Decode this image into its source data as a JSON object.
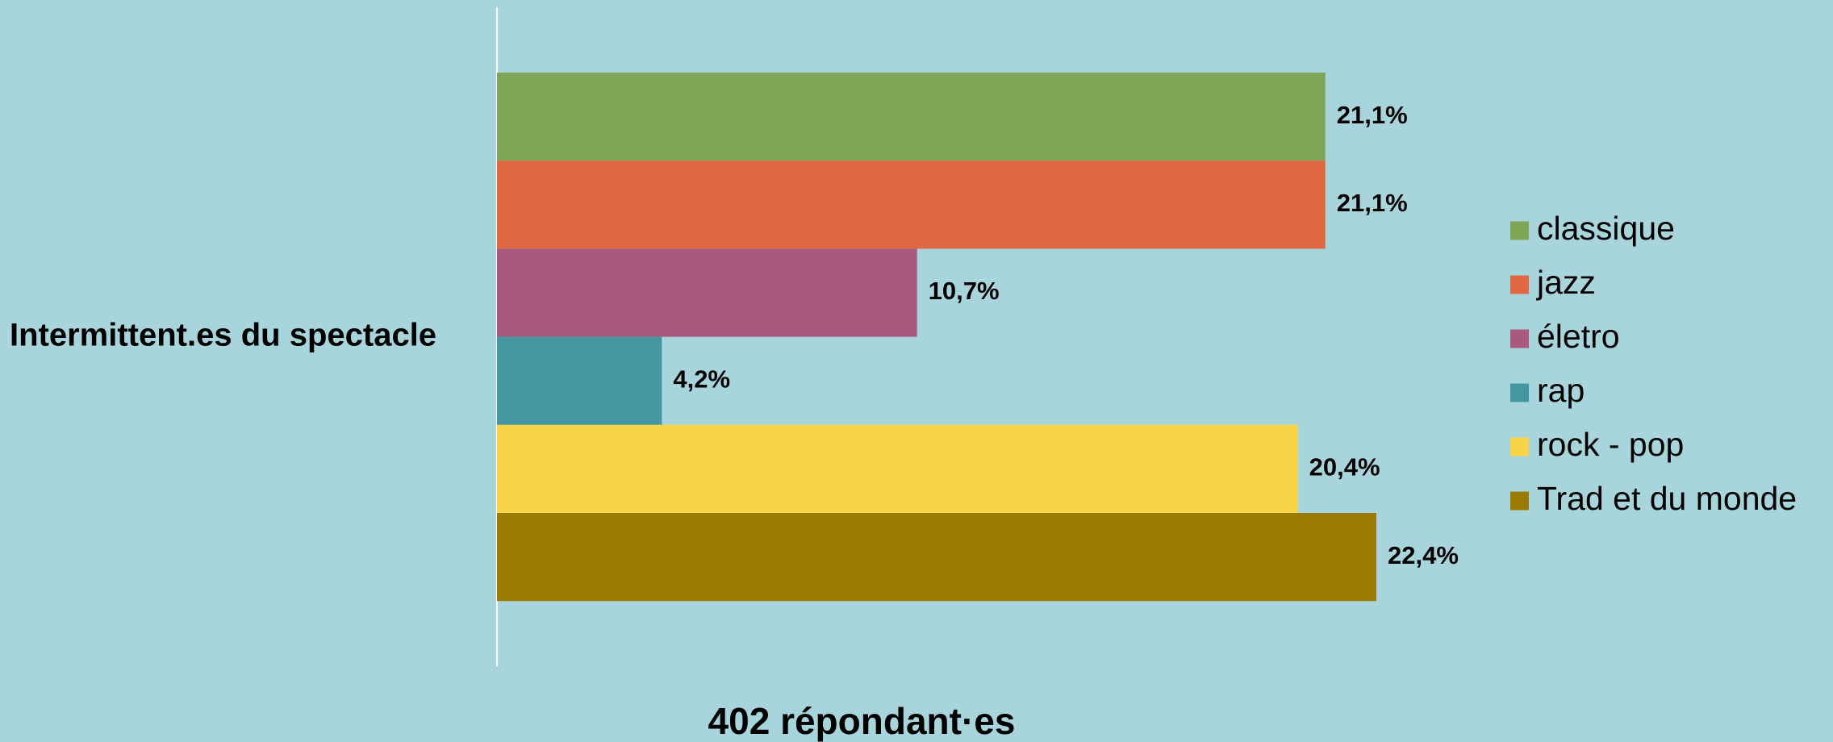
{
  "chart_data": {
    "type": "bar",
    "orientation": "horizontal",
    "categories": [
      "Intermittent.es du spectacle"
    ],
    "x_label": "402 répondant·es",
    "series": [
      {
        "name": "classique",
        "color": "#7ea657",
        "values": [
          21.1
        ],
        "value_labels": [
          "21,1%"
        ]
      },
      {
        "name": "jazz",
        "color": "#e06842",
        "values": [
          21.1
        ],
        "value_labels": [
          "21,1%"
        ]
      },
      {
        "name": "életro",
        "color": "#aa5880",
        "values": [
          10.7
        ],
        "value_labels": [
          "10,7%"
        ]
      },
      {
        "name": "rap",
        "color": "#4496a1",
        "values": [
          4.2
        ],
        "value_labels": [
          "4,2%"
        ]
      },
      {
        "name": "rock - pop",
        "color": "#f9d448",
        "values": [
          20.4
        ],
        "value_labels": [
          "20,4%"
        ]
      },
      {
        "name": "Trad et du monde",
        "color": "#9a7c04",
        "values": [
          22.4
        ],
        "value_labels": [
          "22,4%"
        ]
      }
    ],
    "legend": "right"
  }
}
